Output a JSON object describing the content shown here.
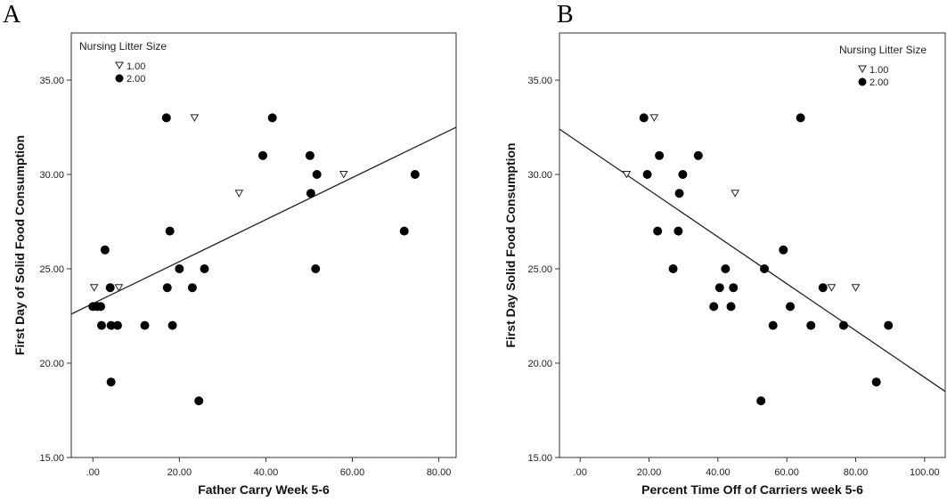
{
  "chart_data": [
    {
      "panel_label": "A",
      "type": "scatter",
      "xlabel": "Father Carry Week 5-6",
      "ylabel": "First Day of Solid Food Consumption",
      "xlim": [
        -5,
        84
      ],
      "ylim": [
        15,
        37.5
      ],
      "xticks": [
        0,
        20,
        40,
        60,
        80
      ],
      "xtick_labels": [
        ".00",
        "20.00",
        "40.00",
        "60.00",
        "80.00"
      ],
      "yticks": [
        15,
        20,
        25,
        30,
        35
      ],
      "ytick_labels": [
        "15.00",
        "20.00",
        "25.00",
        "30.00",
        "35.00"
      ],
      "legend": {
        "title": "Nursing Litter Size",
        "placement": "top-left"
      },
      "series": [
        {
          "name": "1.00",
          "marker": "triangle-open",
          "points": [
            [
              0.3,
              24
            ],
            [
              6,
              24
            ],
            [
              23.5,
              33
            ],
            [
              33.8,
              29
            ],
            [
              58,
              30
            ]
          ]
        },
        {
          "name": "2.00",
          "marker": "circle-filled",
          "points": [
            [
              0,
              23
            ],
            [
              1,
              23
            ],
            [
              1.8,
              23
            ],
            [
              2,
              22
            ],
            [
              2.8,
              26
            ],
            [
              4,
              24
            ],
            [
              4.2,
              22
            ],
            [
              5.7,
              22
            ],
            [
              4.2,
              19
            ],
            [
              12,
              22
            ],
            [
              17,
              33
            ],
            [
              17.2,
              24
            ],
            [
              17.8,
              27
            ],
            [
              18.4,
              22
            ],
            [
              20,
              25
            ],
            [
              23,
              24
            ],
            [
              24.5,
              18
            ],
            [
              25.8,
              25
            ],
            [
              39.3,
              31
            ],
            [
              41.5,
              33
            ],
            [
              50.2,
              31
            ],
            [
              50.4,
              29
            ],
            [
              51.5,
              25
            ],
            [
              51.8,
              30
            ],
            [
              72,
              27
            ],
            [
              74.5,
              30
            ]
          ]
        }
      ],
      "fit_line": {
        "x": [
          -5,
          84
        ],
        "y": [
          22.6,
          32.5
        ]
      }
    },
    {
      "panel_label": "B",
      "type": "scatter",
      "xlabel": "Percent Time Off of Carriers week 5-6",
      "ylabel": "First Day Solid Food Consumption",
      "xlim": [
        -6,
        106
      ],
      "ylim": [
        15,
        37.5
      ],
      "xticks": [
        0,
        20,
        40,
        60,
        80,
        100
      ],
      "xtick_labels": [
        ".00",
        "20.00",
        "40.00",
        "60.00",
        "80.00",
        "100.00"
      ],
      "yticks": [
        15,
        20,
        25,
        30,
        35
      ],
      "ytick_labels": [
        "15.00",
        "20.00",
        "25.00",
        "30.00",
        "35.00"
      ],
      "legend": {
        "title": "Nursing Litter Size",
        "placement": "top-right"
      },
      "series": [
        {
          "name": "1.00",
          "marker": "triangle-open",
          "points": [
            [
              13.5,
              30
            ],
            [
              21.5,
              33
            ],
            [
              45,
              29
            ],
            [
              73,
              24
            ],
            [
              80,
              24
            ]
          ]
        },
        {
          "name": "2.00",
          "marker": "circle-filled",
          "points": [
            [
              18.5,
              33
            ],
            [
              19.5,
              30
            ],
            [
              22.5,
              27
            ],
            [
              23,
              31
            ],
            [
              27,
              25
            ],
            [
              28.5,
              27
            ],
            [
              28.8,
              29
            ],
            [
              29.8,
              30
            ],
            [
              34.3,
              31
            ],
            [
              38.8,
              23
            ],
            [
              40.5,
              24
            ],
            [
              42.2,
              25
            ],
            [
              43.8,
              23
            ],
            [
              44.5,
              24
            ],
            [
              52.5,
              18
            ],
            [
              53.5,
              25
            ],
            [
              56,
              22
            ],
            [
              59,
              26
            ],
            [
              61,
              23
            ],
            [
              64,
              33
            ],
            [
              67,
              22
            ],
            [
              70.5,
              24
            ],
            [
              76.5,
              22
            ],
            [
              86,
              19
            ],
            [
              89.5,
              22
            ]
          ]
        }
      ],
      "fit_line": {
        "x": [
          -6,
          106
        ],
        "y": [
          32.4,
          18.5
        ]
      }
    }
  ]
}
